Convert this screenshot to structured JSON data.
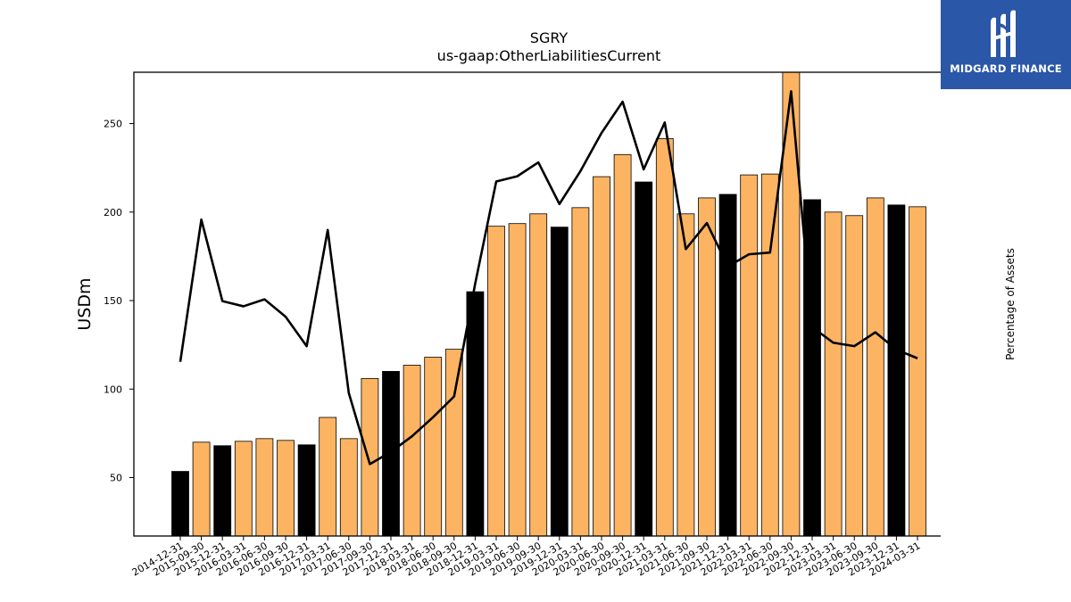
{
  "chart_data": {
    "type": "bar",
    "title": "SGRY",
    "subtitle": "us-gaap:OtherLiabilitiesCurrent",
    "ylabel": "USDm",
    "y2label": "Percentage of Assets",
    "ylim": [
      17,
      279
    ],
    "y2lim": [
      1.895,
      4.57
    ],
    "yticks": [
      50,
      100,
      150,
      200,
      250
    ],
    "y2ticks": [
      2.0,
      2.5,
      3.0,
      3.5,
      4.0
    ],
    "y2tick_labels": [
      "2.0",
      "2.5",
      "3.0",
      "3.5",
      "4.0"
    ],
    "categories": [
      "2014-12-31",
      "2015-09-30",
      "2015-12-31",
      "2016-03-31",
      "2016-06-30",
      "2016-09-30",
      "2016-12-31",
      "2017-03-31",
      "2017-06-30",
      "2017-09-30",
      "2017-12-31",
      "2018-03-31",
      "2018-06-30",
      "2018-09-30",
      "2018-12-31",
      "2019-03-31",
      "2019-06-30",
      "2019-09-30",
      "2019-12-31",
      "2020-03-31",
      "2020-06-30",
      "2020-09-30",
      "2020-12-31",
      "2021-03-31",
      "2021-06-30",
      "2021-09-30",
      "2021-12-31",
      "2022-03-31",
      "2022-06-30",
      "2022-09-30",
      "2022-12-31",
      "2023-03-31",
      "2023-06-30",
      "2023-09-30",
      "2023-12-31",
      "2024-03-31"
    ],
    "series": [
      {
        "type": "bar",
        "values": [
          53.5,
          70,
          68,
          70.5,
          72,
          71,
          68.5,
          84,
          72,
          106,
          110,
          113.5,
          118,
          122.5,
          155,
          192,
          193.5,
          199,
          191.5,
          202.5,
          220,
          232.5,
          217,
          241.5,
          199,
          208,
          210,
          221,
          221.5,
          281,
          207,
          200,
          198,
          208,
          204,
          203
        ]
      },
      {
        "type": "line",
        "axis": "right",
        "values": [
          2.9,
          3.72,
          3.25,
          3.22,
          3.26,
          3.16,
          2.99,
          3.66,
          2.72,
          2.31,
          2.38,
          2.47,
          2.58,
          2.7,
          3.35,
          3.94,
          3.97,
          4.05,
          3.81,
          4.0,
          4.22,
          4.4,
          4.01,
          4.28,
          3.55,
          3.7,
          3.45,
          3.52,
          3.53,
          4.46,
          3.1,
          3.01,
          2.99,
          3.07,
          2.97,
          2.92
        ]
      }
    ],
    "highlight_indices": [
      0,
      2,
      6,
      10,
      14,
      18,
      22,
      26,
      30,
      34
    ],
    "colors": {
      "bar": "#fdb462",
      "bar_highlight": "#000000",
      "line": "#000000"
    }
  },
  "logo": {
    "text": "MIDGARD FINANCE",
    "bg": "#2a57a8"
  }
}
